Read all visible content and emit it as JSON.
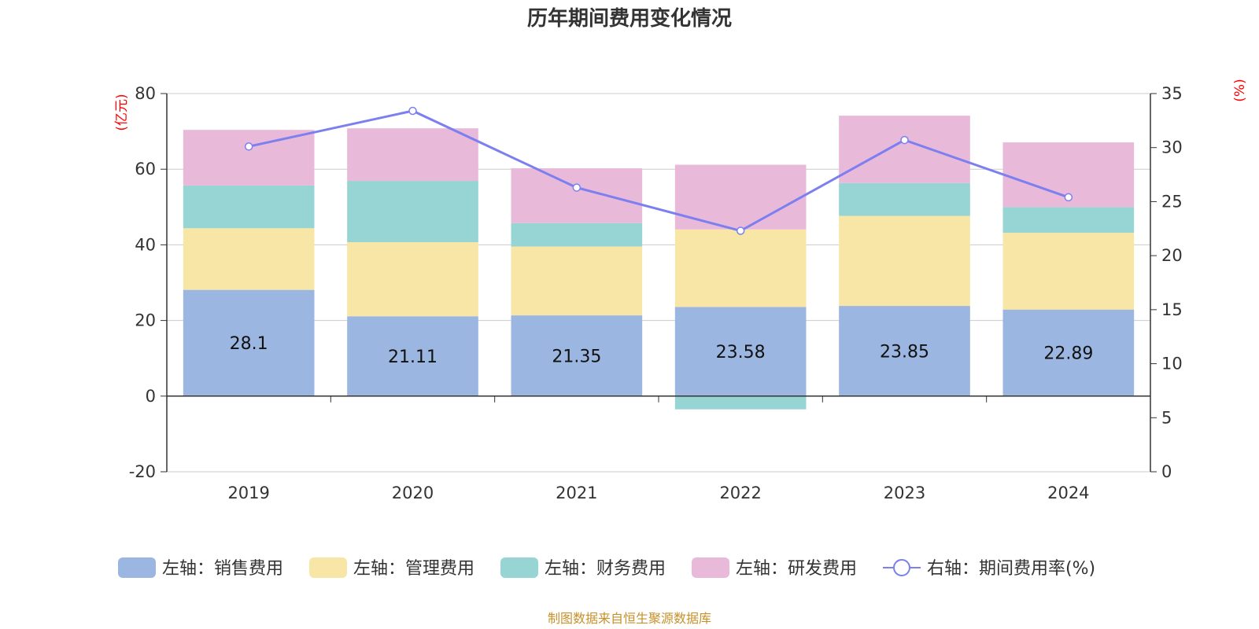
{
  "chart_data": {
    "type": "bar",
    "stacked": true,
    "title": "历年期间费用变化情况",
    "categories": [
      "2019",
      "2020",
      "2021",
      "2022",
      "2023",
      "2024"
    ],
    "left_axis": {
      "unit": "(亿元)",
      "ylim": [
        -20,
        80
      ],
      "ticks": [
        "-20",
        "0",
        "20",
        "40",
        "60",
        "80"
      ]
    },
    "right_axis": {
      "unit": "(%)",
      "ylim": [
        0,
        35
      ],
      "ticks": [
        "0",
        "5",
        "10",
        "15",
        "20",
        "25",
        "30",
        "35"
      ]
    },
    "series": [
      {
        "name": "左轴：销售费用",
        "axis": "left",
        "color": "#9bb6e0",
        "values": [
          28.1,
          21.11,
          21.35,
          23.58,
          23.85,
          22.89
        ],
        "labels": [
          "28.1",
          "21.11",
          "21.35",
          "23.58",
          "23.85",
          "22.89"
        ]
      },
      {
        "name": "左轴：管理费用",
        "axis": "left",
        "color": "#f7e6a6",
        "values": [
          16.3,
          19.6,
          18.2,
          20.5,
          23.8,
          20.3
        ]
      },
      {
        "name": "左轴：财务费用",
        "axis": "left",
        "color": "#97d4d4",
        "values": [
          11.3,
          16.2,
          6.2,
          -3.5,
          8.7,
          6.8
        ]
      },
      {
        "name": "左轴：研发费用",
        "axis": "left",
        "color": "#e8b9d9",
        "values": [
          14.7,
          13.9,
          14.5,
          17.1,
          17.8,
          17.1
        ]
      }
    ],
    "line": {
      "name": "右轴：期间费用率(%)",
      "axis": "right",
      "color": "#7b7fef",
      "values": [
        30.1,
        33.4,
        26.3,
        22.3,
        30.7,
        25.4
      ]
    },
    "grid": true,
    "legend_position": "bottom"
  },
  "source": "制图数据来自恒生聚源数据库"
}
